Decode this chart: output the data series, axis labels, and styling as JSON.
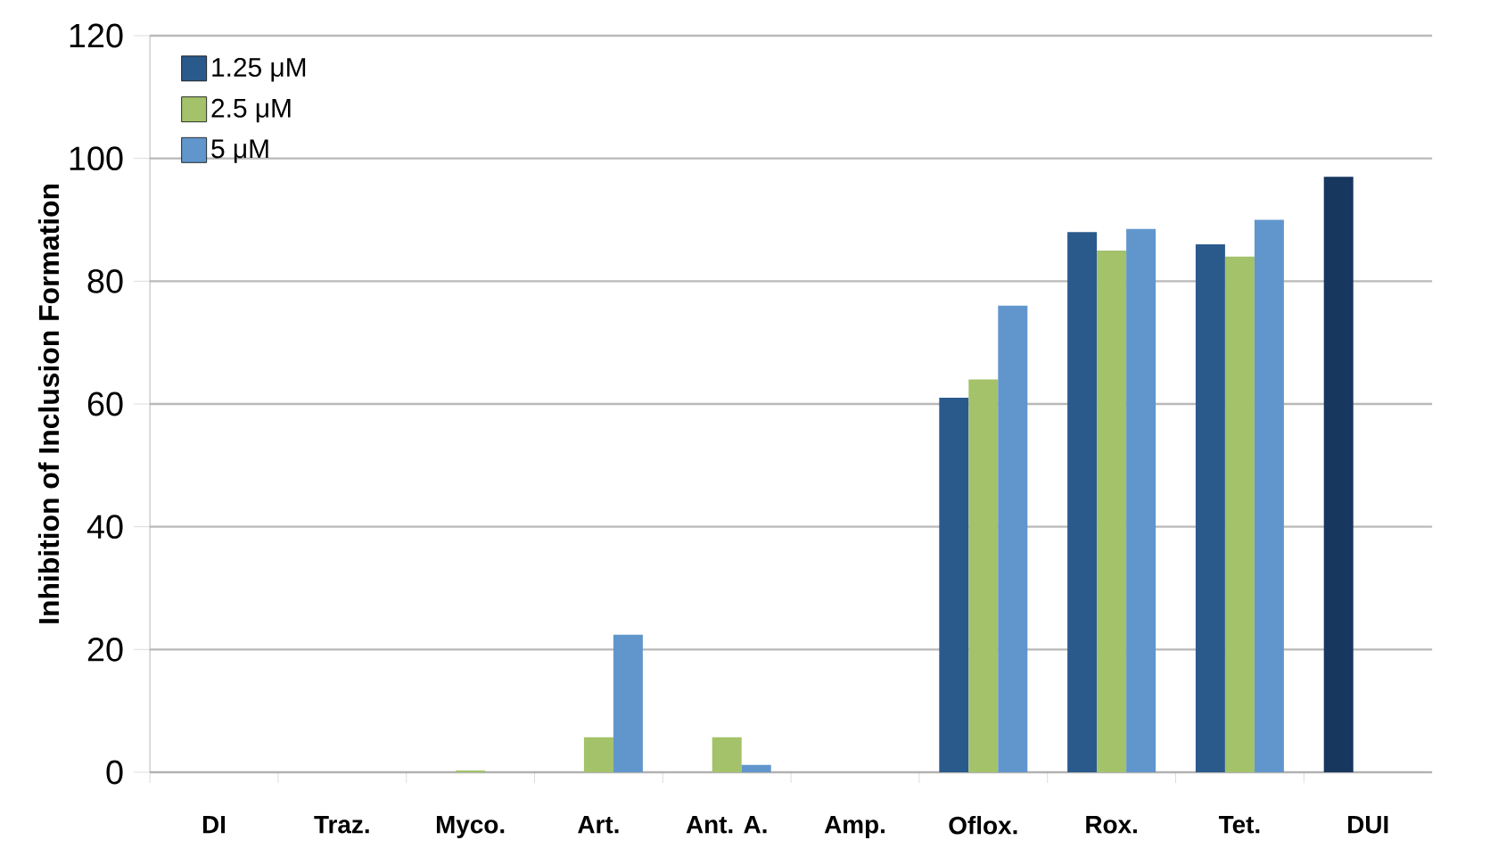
{
  "chart_data": {
    "type": "bar",
    "ylabel": "Inhibition of Inclusion Formation",
    "categories": [
      "DI",
      "Traz.",
      "Myco.",
      "Art.",
      "Ant. A.",
      "Amp.",
      "Oflox.",
      "Rox.",
      "Tet.",
      "DUI"
    ],
    "series": [
      {
        "name": "1.25 μM",
        "color": "#2a5a8c",
        "colors": [
          "#2a5a8c",
          "#2a5a8c",
          "#2a5a8c",
          "#2a5a8c",
          "#2a5a8c",
          "#2a5a8c",
          "#2a5a8c",
          "#2a5a8c",
          "#2a5a8c",
          "#17375e"
        ],
        "values": [
          0,
          0,
          0,
          0,
          0,
          0,
          61,
          88,
          86,
          97
        ]
      },
      {
        "name": "2.5 μM",
        "color": "#a3c26a",
        "values": [
          0,
          0,
          0.3,
          5.7,
          5.7,
          0,
          64,
          85,
          84,
          null
        ]
      },
      {
        "name": "5 μM",
        "color": "#6096cc",
        "values": [
          0,
          0,
          0,
          22.4,
          1.2,
          0,
          76,
          88.5,
          90,
          null
        ]
      }
    ],
    "ylim": [
      0,
      120
    ],
    "yticks": [
      0,
      20,
      40,
      60,
      80,
      100,
      120
    ],
    "grid": "y",
    "legend": "top left"
  }
}
